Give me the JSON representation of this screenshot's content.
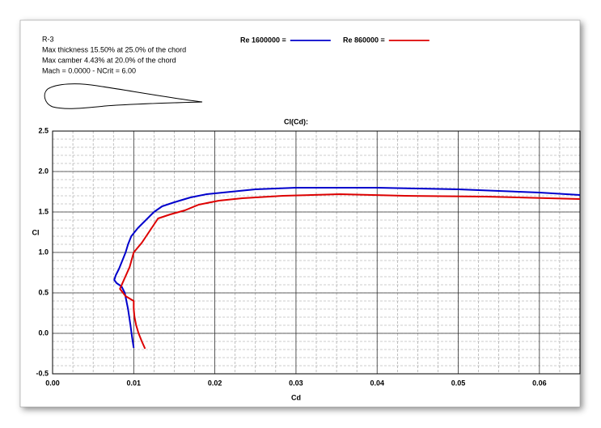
{
  "chart_data": {
    "type": "line",
    "info": [
      "R-3",
      "Max thickness 15.50% at 25.0% of the chord",
      "Max camber 4.43% at 20.0% of the chord",
      "Mach = 0.0000 - NCrit = 6.00"
    ],
    "title": "Cl(Cd):",
    "x_label": "Cd",
    "y_label": "Cl",
    "xlim": [
      0,
      0.065
    ],
    "ylim": [
      -0.5,
      2.5
    ],
    "xticks": [
      {
        "value": 0,
        "label": "0.00"
      },
      {
        "value": 0.01,
        "label": "0.01"
      },
      {
        "value": 0.02,
        "label": "0.02"
      },
      {
        "value": 0.03,
        "label": "0.03"
      },
      {
        "value": 0.04,
        "label": "0.04"
      },
      {
        "value": 0.05,
        "label": "0.05"
      },
      {
        "value": 0.06,
        "label": "0.06"
      }
    ],
    "yticks": [
      2.5,
      {
        "value": 2.0,
        "label": "2.0"
      },
      1.5,
      {
        "value": 1.0,
        "label": "1.0"
      },
      0.5,
      {
        "value": 0.0,
        "label": "0.0"
      },
      -0.5
    ],
    "grid": true,
    "series": [
      {
        "name": "Re 1600000 =",
        "color": "#0000cc",
        "x": [
          0.01,
          0.0098,
          0.0096,
          0.0093,
          0.0091,
          0.0089,
          0.0085,
          0.0079,
          0.0076,
          0.0078,
          0.0082,
          0.0086,
          0.009,
          0.0093,
          0.0097,
          0.0105,
          0.0115,
          0.0125,
          0.0135,
          0.015,
          0.017,
          0.019,
          0.022,
          0.025,
          0.03,
          0.035,
          0.04,
          0.045,
          0.05,
          0.055,
          0.06,
          0.065
        ],
        "values": [
          -0.18,
          -0.05,
          0.1,
          0.3,
          0.4,
          0.5,
          0.58,
          0.62,
          0.66,
          0.72,
          0.8,
          0.9,
          1.0,
          1.1,
          1.2,
          1.3,
          1.4,
          1.5,
          1.57,
          1.62,
          1.68,
          1.72,
          1.75,
          1.78,
          1.8,
          1.8,
          1.8,
          1.79,
          1.78,
          1.76,
          1.74,
          1.71
        ]
      },
      {
        "name": "Re 860000 =",
        "color": "#dd0000",
        "x": [
          0.0114,
          0.011,
          0.0106,
          0.0103,
          0.0101,
          0.01,
          0.01,
          0.009,
          0.0083,
          0.0095,
          0.01,
          0.011,
          0.012,
          0.013,
          0.0145,
          0.0163,
          0.018,
          0.0205,
          0.0234,
          0.0284,
          0.0354,
          0.0434,
          0.0533,
          0.065
        ],
        "values": [
          -0.19,
          -0.1,
          0.0,
          0.1,
          0.2,
          0.3,
          0.4,
          0.46,
          0.55,
          0.82,
          1.0,
          1.12,
          1.27,
          1.42,
          1.47,
          1.52,
          1.59,
          1.64,
          1.67,
          1.7,
          1.72,
          1.7,
          1.69,
          1.66
        ]
      }
    ]
  }
}
